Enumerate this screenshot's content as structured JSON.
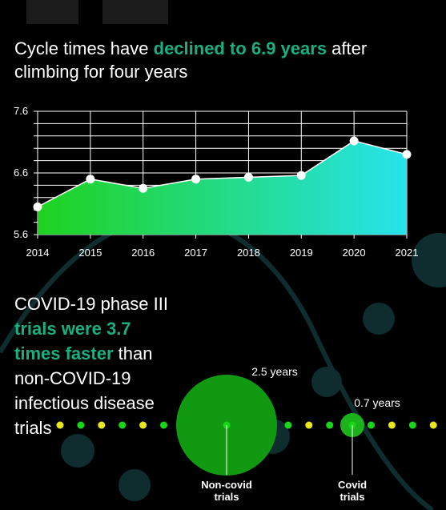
{
  "headline": {
    "prefix": "Cycle times have ",
    "highlight": "declined to 6.9 years",
    "suffix": " after climbing for four years"
  },
  "colors": {
    "accent": "#1aaf83",
    "area_start": "#1fd21f",
    "area_end": "#27e3ec",
    "big_bubble": "#119a11",
    "dot_green": "#16d716",
    "dot_yellow": "#e8e81a",
    "small_bubble": "#1cb21c",
    "background": "#000000",
    "decor": "#0f2d2f"
  },
  "chart_data": [
    {
      "type": "area",
      "x": [
        "2014",
        "2015",
        "2016",
        "2017",
        "2018",
        "2019",
        "2020",
        "2021"
      ],
      "values": [
        6.05,
        6.5,
        6.35,
        6.5,
        6.53,
        6.56,
        7.12,
        6.9
      ],
      "ylim": [
        5.6,
        7.6
      ],
      "yticks": [
        "5.6",
        "6.6",
        "7.6"
      ],
      "grid": true
    },
    {
      "type": "scatter",
      "series": [
        {
          "name": "Non-covid trials",
          "value": 2.5,
          "label": "2.5 years"
        },
        {
          "name": "Covid trials",
          "value": 0.7,
          "label": "0.7 years"
        }
      ]
    }
  ],
  "comparison": {
    "line1": "COVID-19 phase III",
    "highlight": "trials were 3.7 times faster",
    "rest": " than non-COVID-19 infectious disease trials",
    "noncovid_label_1": "Non-covid",
    "noncovid_label_2": "trials",
    "noncovid_value": "2.5 years",
    "covid_label_1": "Covid",
    "covid_label_2": "trials",
    "covid_value": "0.7 years"
  }
}
